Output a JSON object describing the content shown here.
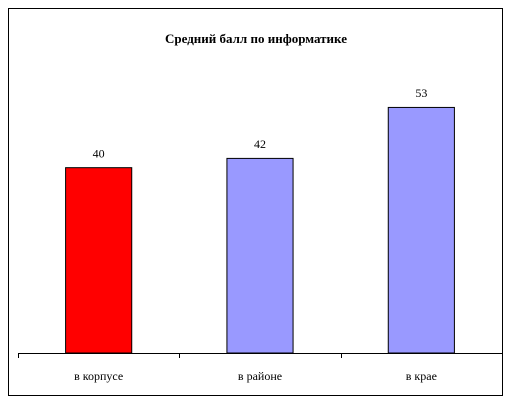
{
  "chart_data": {
    "type": "bar",
    "title": "Средний балл по информатике",
    "categories": [
      "в корпусе",
      "в районе",
      "в крае"
    ],
    "values": [
      40,
      42,
      53
    ],
    "colors": [
      "#ff0000",
      "#9999ff",
      "#9999ff"
    ],
    "ylim": [
      0,
      60
    ]
  }
}
